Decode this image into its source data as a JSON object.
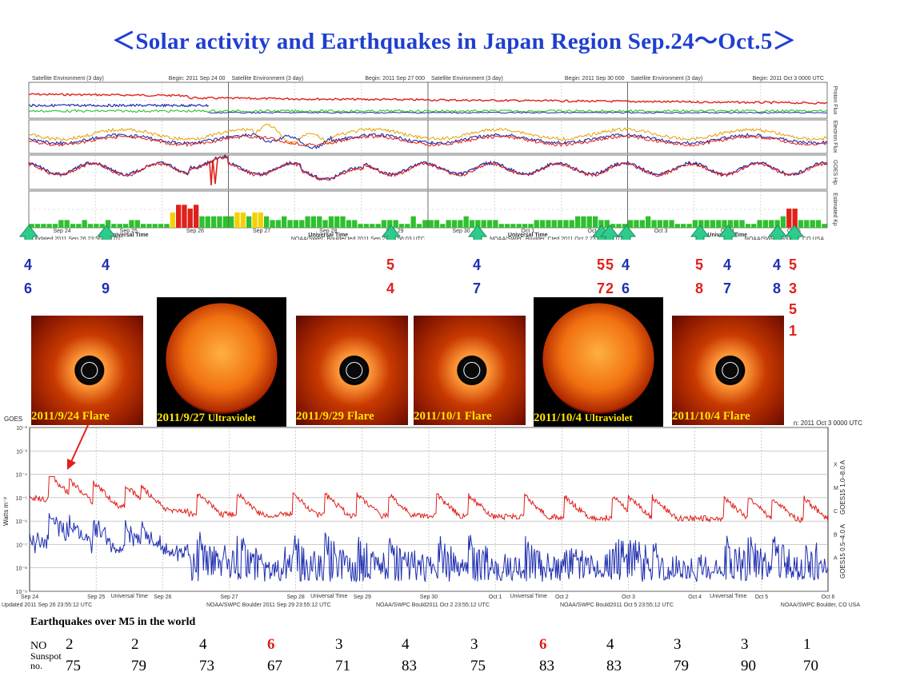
{
  "title": "＜Solar activity and Earthquakes  in Japan Region Sep.24～Oct.5＞",
  "top_panels": [
    {
      "header_left": "Satellite Environment (3 day)",
      "header_right": "Begin:  2011 Sep 24  00",
      "footer": "Updated 2011 Sep 26 23:56:03 UTC"
    },
    {
      "header_left": "Satellite Environment (3 day)",
      "header_right": "Begin:  2011 Sep 27 000",
      "footer": "NOAA/SWPC Boulder ted 2011 Sep 29 23:56:03 UTC"
    },
    {
      "header_left": "Satellite Environment (3 day)",
      "header_right": "Begin:  2011 Sep 30 000",
      "footer": "NOAA/SWPC Boulder, Cted 2011 Oct  2 23:56:03 UTC"
    },
    {
      "header_left": "Satellite Environment (3 day)",
      "header_right": "Begin:  2011 Oct 3 0000 UTC",
      "footer": "NOAA/SWPC Boulder, CO USA"
    }
  ],
  "top_day_labels": [
    "Sep 24",
    "Sep 25",
    "Sep 26",
    "Sep 27",
    "Sep 28",
    "Sep 29",
    "Sep 30",
    "Oct 1",
    "Oct 2",
    "Oct 3",
    "Oct 4",
    "Oct 5"
  ],
  "universal_time": "Universal Time",
  "row_labels": [
    "Proton Flux",
    "Electron Flux",
    "GOES Hp",
    "Estimated Kp"
  ],
  "colors": {
    "red": "#e0201a",
    "blue": "#1f2fb0",
    "green": "#2ec02e",
    "yellow": "#f5d000",
    "arrow": "#2ecc8a",
    "title": "#1f3fd0"
  },
  "chart_data": [
    {
      "type": "bar",
      "title": "Estimated Kp",
      "categories_note": "3-hour intervals Sep 24 00UT to Oct 6 00UT",
      "values": [
        1,
        1,
        1,
        1,
        1,
        2,
        2,
        1,
        1,
        2,
        1,
        1,
        1,
        2,
        1,
        1,
        1,
        2,
        2,
        1,
        1,
        1,
        1,
        1,
        4,
        6,
        6,
        5,
        6,
        3,
        3,
        3,
        3,
        3,
        3,
        4,
        4,
        3,
        4,
        4,
        3,
        2,
        2,
        3,
        2,
        2,
        2,
        3,
        3,
        3,
        2,
        3,
        3,
        3,
        2,
        2,
        1,
        1,
        1,
        1,
        2,
        2,
        2,
        1,
        1,
        3,
        1,
        2,
        2,
        2,
        1,
        2,
        2,
        2,
        3,
        2,
        2,
        2,
        2,
        2,
        1,
        1,
        1,
        1,
        1,
        1,
        2,
        2,
        2,
        2,
        2,
        2,
        2,
        3,
        3,
        3,
        3,
        2,
        2,
        1,
        1,
        1,
        2,
        2,
        2,
        3,
        2,
        2,
        2,
        2,
        1,
        1,
        1,
        2,
        2,
        2,
        2,
        2,
        2,
        2,
        2,
        2,
        1,
        1,
        2,
        2,
        2,
        2,
        3,
        5,
        5,
        2,
        2,
        2,
        2,
        1
      ],
      "ylim": [
        0,
        9
      ]
    },
    {
      "type": "line",
      "title": "GOES X-ray flux",
      "ylabel": "Watts m⁻²",
      "x_start": "Sep 24",
      "x_end": "Oct 6",
      "scale": "log",
      "ylim": [
        1e-09,
        0.01
      ],
      "series": [
        {
          "name": "GOES15 1.0–8.0 A"
        },
        {
          "name": "GOES15 0.5–4.0 A"
        }
      ],
      "flare_classes": [
        "X",
        "M",
        "C",
        "B",
        "A"
      ]
    }
  ],
  "arrows": [
    {
      "top": "4",
      "bottom": "6",
      "color": "blue"
    },
    {
      "top": "4",
      "bottom": "9",
      "color": "blue"
    },
    {
      "top": "5",
      "bottom": "4",
      "color": "red"
    },
    {
      "top": "4",
      "bottom": "7",
      "color": "blue"
    },
    {
      "top": "5",
      "bottom": "7",
      "color": "red"
    },
    {
      "top": "5",
      "bottom": "2",
      "color": "red"
    },
    {
      "top": "4",
      "bottom": "6",
      "color": "blue"
    },
    {
      "top": "5",
      "bottom": "8",
      "color": "red"
    },
    {
      "top": "4",
      "bottom": "7",
      "color": "blue"
    },
    {
      "top": "4",
      "bottom": "8",
      "color": "blue"
    },
    {
      "top": "5",
      "bottom": "3",
      "color": "red",
      "extra": [
        "5",
        "1"
      ]
    }
  ],
  "images": [
    {
      "caption": "2011/9/24 Flare",
      "kind": "corona"
    },
    {
      "caption": "2011/9/27",
      "caption_extra": "Ultraviolet",
      "kind": "sun"
    },
    {
      "caption": "2011/9/29 Flare",
      "kind": "corona"
    },
    {
      "caption": "2011/10/1 Flare",
      "kind": "corona"
    },
    {
      "caption": "2011/10/4",
      "caption_extra": "Ultraviolet",
      "kind": "sun"
    },
    {
      "caption": "2011/10/4 Flare",
      "kind": "corona"
    }
  ],
  "xray": {
    "header_left": "GOES",
    "header_right": "n:  2011 Oct 3 0000 UTC",
    "ylabel": "Watts m⁻²",
    "right_labels": [
      "GOES15 1.0–8.0 A",
      "GOES15 0.5–4.0 A"
    ],
    "classes": [
      "X",
      "M",
      "C",
      "B",
      "A"
    ],
    "x_labels": [
      "Sep 24",
      "Sep 25",
      "Sep 26",
      "Sep 27",
      "Sep 28",
      "Sep 29",
      "Sep 30",
      "Oct 1",
      "Oct 2",
      "Oct 3",
      "Oct 4",
      "Oct 5",
      "Oct 6"
    ],
    "y_labels": [
      "10⁻²",
      "10⁻³",
      "10⁻⁴",
      "10⁻⁵",
      "10⁻⁶",
      "10⁻⁷",
      "10⁻⁸",
      "10⁻⁹"
    ],
    "universal_time": "Universal Time",
    "footer_parts": [
      "Updated 2011 Sep 26 23:55:12 UTC",
      "NOAA/SWPC Boulder 2011 Sep 29 23:55:12 UTC",
      "NOAA/SWPC Bould2011 Oct  2 23:55:12 UTC",
      "NOAA/SWPC Bould2011 Oct  5 23:55:12 UTC",
      "NOAA/SWPC Boulder, CO USA"
    ]
  },
  "earthquakes": {
    "title": "Earthquakes  over  M5 in the world",
    "no_label": "NO",
    "sunspot_label_1": "Sunspot",
    "sunspot_label_2": "no.",
    "counts": [
      "2",
      "2",
      "4",
      "6",
      "3",
      "4",
      "3",
      "6",
      "4",
      "3",
      "3",
      "1"
    ],
    "highlighted": [
      false,
      false,
      false,
      true,
      false,
      false,
      false,
      true,
      false,
      false,
      false,
      false
    ],
    "sunspots": [
      "75",
      "79",
      "73",
      "67",
      "71",
      "83",
      "75",
      "83",
      "83",
      "79",
      "90",
      "70"
    ]
  }
}
